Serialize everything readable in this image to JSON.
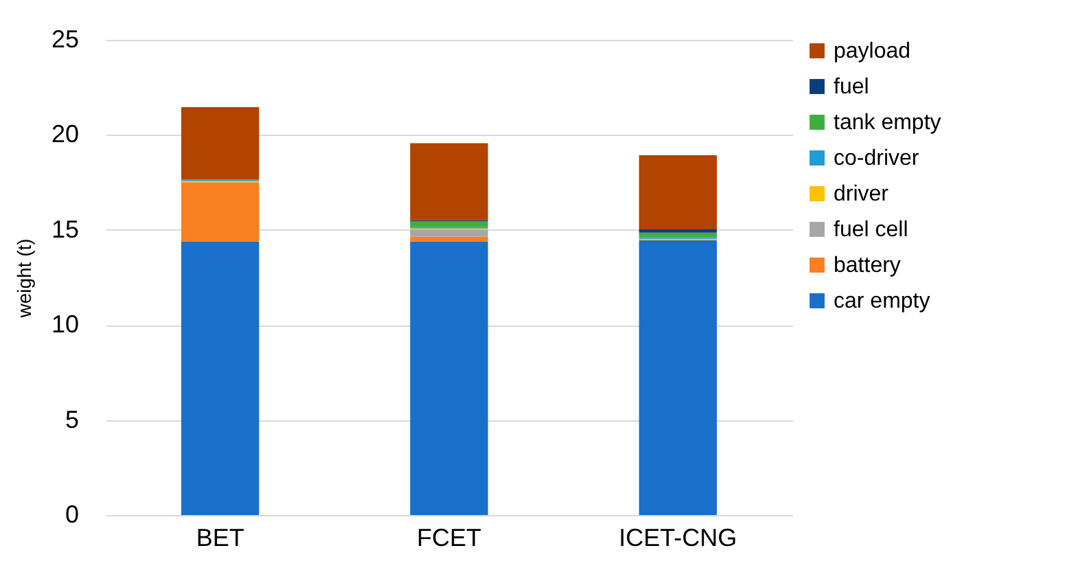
{
  "chart_data": {
    "type": "bar",
    "stacked": true,
    "ylabel": "weight (t)",
    "categories": [
      "BET",
      "FCET",
      "ICET-CNG"
    ],
    "series": [
      {
        "name": "car empty",
        "color": "#1a6fcb",
        "values": [
          14.4,
          14.4,
          14.45
        ]
      },
      {
        "name": "battery",
        "color": "#f97f20",
        "values": [
          3.1,
          0.25,
          0
        ]
      },
      {
        "name": "fuel cell",
        "color": "#a6a6a6",
        "values": [
          0,
          0.35,
          0
        ]
      },
      {
        "name": "driver",
        "color": "#ffc000",
        "values": [
          0.08,
          0.08,
          0.08
        ]
      },
      {
        "name": "co-driver",
        "color": "#1f9bd7",
        "values": [
          0.08,
          0.08,
          0.08
        ]
      },
      {
        "name": "tank empty",
        "color": "#3fae3f",
        "values": [
          0,
          0.3,
          0.25
        ]
      },
      {
        "name": "fuel",
        "color": "#0b3d7a",
        "values": [
          0,
          0.05,
          0.17
        ]
      },
      {
        "name": "payload",
        "color": "#b34400",
        "values": [
          3.8,
          4.05,
          3.9
        ]
      }
    ],
    "ylim": [
      0,
      25
    ],
    "yticks": [
      0,
      5,
      10,
      15,
      20,
      25
    ],
    "grid": "y",
    "legend": "right"
  }
}
